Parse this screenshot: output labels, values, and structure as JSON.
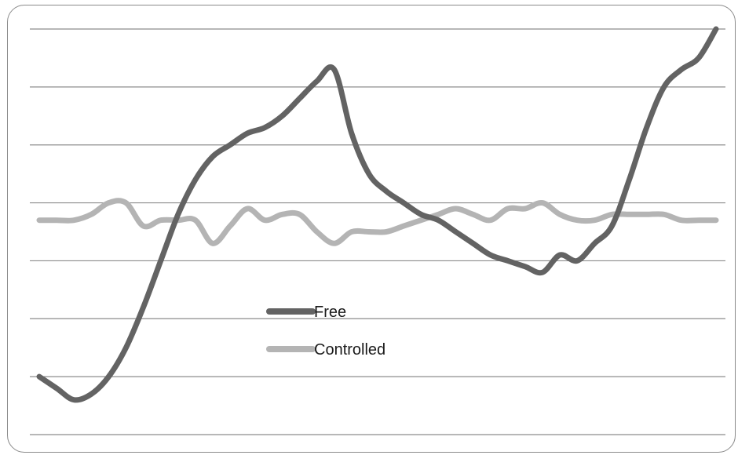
{
  "chart_data": {
    "type": "line",
    "title": "",
    "xlabel": "",
    "ylabel": "",
    "grid": true,
    "ylim": [
      0,
      7
    ],
    "gridline_count": 8,
    "legend_position": "center",
    "series": [
      {
        "name": "Free",
        "color": "#636363",
        "values": [
          1.0,
          0.8,
          0.6,
          0.7,
          1.0,
          1.5,
          2.2,
          3.0,
          3.8,
          4.4,
          4.8,
          5.0,
          5.2,
          5.3,
          5.5,
          5.8,
          6.1,
          6.3,
          5.2,
          4.5,
          4.2,
          4.0,
          3.8,
          3.7,
          3.5,
          3.3,
          3.1,
          3.0,
          2.9,
          2.8,
          3.1,
          3.0,
          3.3,
          3.6,
          4.4,
          5.3,
          6.0,
          6.3,
          6.5,
          7.0
        ]
      },
      {
        "name": "Controlled",
        "color": "#b4b4b4",
        "values": [
          3.7,
          3.7,
          3.7,
          3.8,
          4.0,
          4.0,
          3.6,
          3.7,
          3.7,
          3.7,
          3.3,
          3.6,
          3.9,
          3.7,
          3.8,
          3.8,
          3.5,
          3.3,
          3.5,
          3.5,
          3.5,
          3.6,
          3.7,
          3.8,
          3.9,
          3.8,
          3.7,
          3.9,
          3.9,
          4.0,
          3.8,
          3.7,
          3.7,
          3.8,
          3.8,
          3.8,
          3.8,
          3.7,
          3.7,
          3.7
        ]
      }
    ]
  }
}
